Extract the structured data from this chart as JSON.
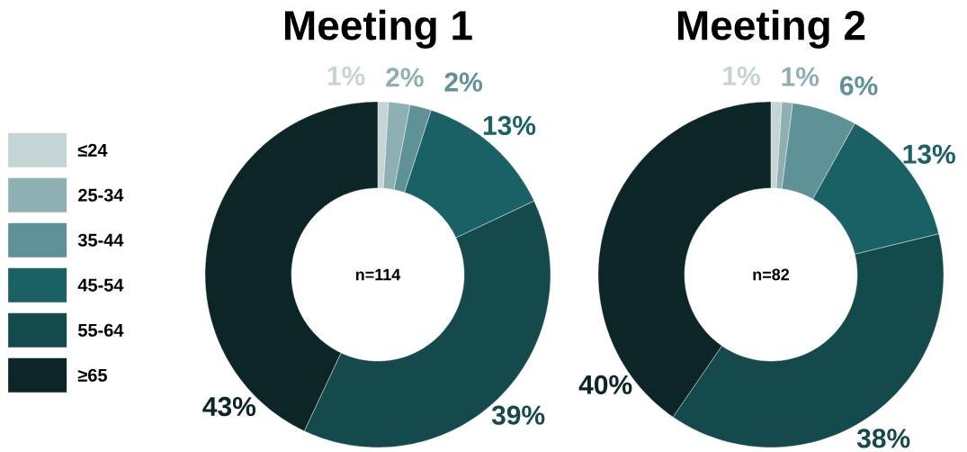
{
  "chart_data": [
    {
      "type": "donut",
      "title": "Meeting 1",
      "categories": [
        "≤24",
        "25-34",
        "35-44",
        "45-54",
        "55-64",
        "≥65"
      ],
      "values": [
        1,
        2,
        2,
        13,
        39,
        43
      ],
      "value_labels": [
        "1%",
        "2%",
        "2%",
        "13%",
        "39%",
        "43%"
      ],
      "colors": [
        "#c5d5d5",
        "#8fb0b3",
        "#5f9296",
        "#1a6166",
        "#154a4c",
        "#0c2627"
      ],
      "annotations": [
        "n=114"
      ],
      "legend": "left"
    },
    {
      "type": "donut",
      "title": "Meeting 2",
      "categories": [
        null,
        null,
        null,
        null,
        null,
        null
      ],
      "values": [
        1,
        1,
        6,
        13,
        38,
        40
      ],
      "value_labels": [
        "1%",
        "1%",
        "6%",
        "13%",
        "38%",
        "40%"
      ],
      "colors": [
        "#c5d5d5",
        "#8fb0b3",
        "#5f9296",
        "#1a6166",
        "#154a4c",
        "#0c2627"
      ],
      "annotations": [
        "n=82"
      ],
      "legend": false
    }
  ]
}
